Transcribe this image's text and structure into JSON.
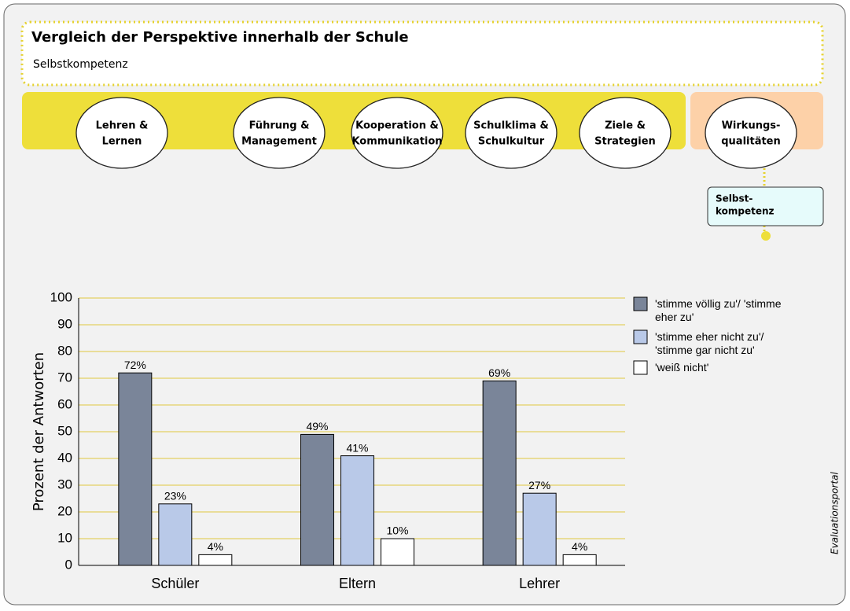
{
  "header": {
    "title": "Vergleich der Perspektive innerhalb der Schule",
    "subtitle": "Selbstkompetenz"
  },
  "nav": [
    {
      "lines": [
        "Lehren &",
        "Lernen"
      ]
    },
    {
      "lines": [
        "Führung &",
        "Management"
      ]
    },
    {
      "lines": [
        "Kooperation &",
        "Kommunikation"
      ]
    },
    {
      "lines": [
        "Schulklima &",
        "Schulkultur"
      ]
    },
    {
      "lines": [
        "Ziele &",
        "Strategien"
      ]
    },
    {
      "lines": [
        "Wirkungs-",
        "qualitäten"
      ]
    }
  ],
  "subnav": {
    "lines": [
      "Selbst-",
      "kompetenz"
    ]
  },
  "watermark": "Evaluationsportal",
  "chart_data": {
    "type": "bar",
    "ylabel": "Prozent der Antworten",
    "categories": [
      "Schüler",
      "Eltern",
      "Lehrer"
    ],
    "series": [
      {
        "name": "'stimme völlig zu'/ 'stimme eher zu'",
        "color": "#7a8599",
        "values": [
          72,
          49,
          69
        ],
        "value_labels": [
          "72%",
          "49%",
          "69%"
        ]
      },
      {
        "name": "'stimme eher nicht zu'/ 'stimme gar nicht zu'",
        "color": "#b9c9e8",
        "values": [
          23,
          41,
          27
        ],
        "value_labels": [
          "23%",
          "41%",
          "27%"
        ]
      },
      {
        "name": "'weiß nicht'",
        "color": "#ffffff",
        "values": [
          4,
          10,
          4
        ],
        "value_labels": [
          "4%",
          "10%",
          "4%"
        ]
      }
    ],
    "ylim": [
      0,
      100
    ],
    "yticks": [
      0,
      10,
      20,
      30,
      40,
      50,
      60,
      70,
      80,
      90,
      100
    ],
    "grid": true
  }
}
